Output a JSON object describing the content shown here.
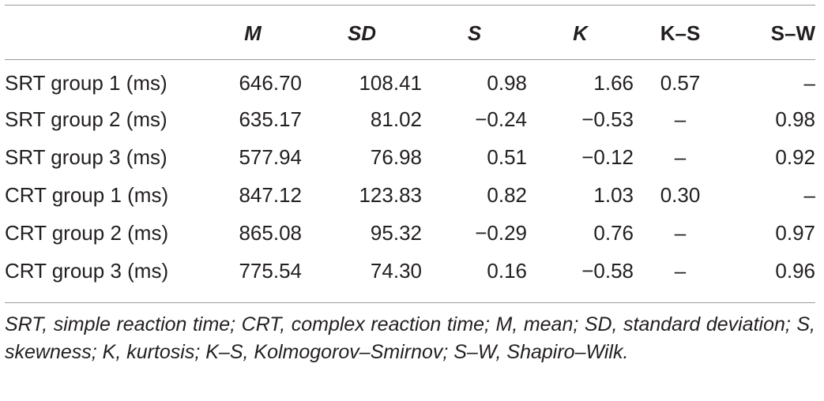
{
  "table": {
    "columns": [
      "",
      "M",
      "SD",
      "S",
      "K",
      "K–S",
      "S–W"
    ],
    "rows": [
      {
        "label": "SRT group 1 (ms)",
        "m": "646.70",
        "sd": "108.41",
        "s": "0.98",
        "k": "1.66",
        "ks": "0.57",
        "sw": "–"
      },
      {
        "label": "SRT group 2 (ms)",
        "m": "635.17",
        "sd": "81.02",
        "s": "−0.24",
        "k": "−0.53",
        "ks": "–",
        "sw": "0.98"
      },
      {
        "label": "SRT group 3 (ms)",
        "m": "577.94",
        "sd": "76.98",
        "s": "0.51",
        "k": "−0.12",
        "ks": "–",
        "sw": "0.92"
      },
      {
        "label": "CRT group 1 (ms)",
        "m": "847.12",
        "sd": "123.83",
        "s": "0.82",
        "k": "1.03",
        "ks": "0.30",
        "sw": "–"
      },
      {
        "label": "CRT group 2 (ms)",
        "m": "865.08",
        "sd": "95.32",
        "s": "−0.29",
        "k": "0.76",
        "ks": "–",
        "sw": "0.97"
      },
      {
        "label": "CRT group 3 (ms)",
        "m": "775.54",
        "sd": "74.30",
        "s": "0.16",
        "k": "−0.58",
        "ks": "–",
        "sw": "0.96"
      }
    ]
  },
  "footnote": "SRT, simple reaction time; CRT, complex reaction time; M, mean; SD, standard deviation; S, skewness; K, kurtosis; K–S, Kolmogorov–Smirnov; S–W, Shapiro–Wilk."
}
